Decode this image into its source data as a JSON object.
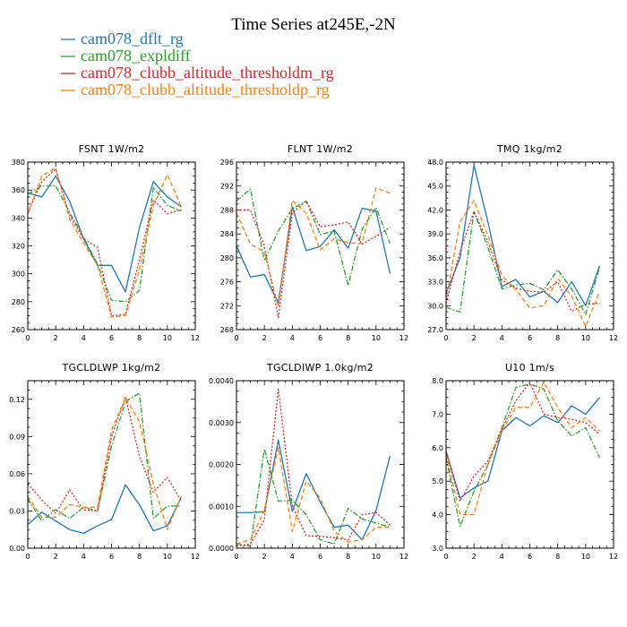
{
  "chart_data": {
    "type": "line",
    "title": "Time Series at245E,-2N",
    "legend_position": "top-left",
    "series_info": [
      {
        "name": "cam078_dflt_rg",
        "color": "#1f77b4",
        "dash": "solid"
      },
      {
        "name": "cam078_expldiff",
        "color": "#2ca02c",
        "dash": "dashdot"
      },
      {
        "name": "cam078_clubb_altitude_thresholdm_rg",
        "color": "#d62728",
        "dash": "dotted"
      },
      {
        "name": "cam078_clubb_altitude_thresholdp_rg",
        "color": "#ff7f0e",
        "dash": "dashed"
      }
    ],
    "x": [
      0,
      1,
      2,
      3,
      4,
      5,
      6,
      7,
      8,
      9,
      10,
      11
    ],
    "panels": [
      {
        "title": "FSNT  1W/m2",
        "xlim": [
          0,
          12
        ],
        "xticks": [
          "0",
          "2",
          "4",
          "6",
          "8",
          "10",
          "12"
        ],
        "ylim": [
          260,
          380
        ],
        "yticks": [
          "260",
          "280",
          "300",
          "320",
          "340",
          "360",
          "380"
        ],
        "series": [
          {
            "name": "cam078_dflt_rg",
            "values": [
              358,
              355,
              370,
              352,
              325,
              306,
              306,
              287,
              333,
              366,
              355,
              348
            ]
          },
          {
            "name": "cam078_expldiff",
            "values": [
              357,
              363,
              363,
              344,
              326,
              307,
              281,
              280,
              288,
              362,
              349,
              345
            ]
          },
          {
            "name": "cam078_clubb_altitude_thresholdm_rg",
            "values": [
              344,
              366,
              375,
              342,
              325,
              319,
              270,
              271,
              310,
              353,
              343,
              346
            ]
          },
          {
            "name": "cam078_clubb_altitude_thresholdp_rg",
            "values": [
              343,
              370,
              376,
              339,
              322,
              306,
              269,
              270,
              303,
              349,
              371,
              348
            ]
          }
        ]
      },
      {
        "title": "FLNT  1W/m2",
        "xlim": [
          0,
          12
        ],
        "xticks": [
          "0",
          "2",
          "4",
          "6",
          "8",
          "10",
          "12"
        ],
        "ylim": [
          268,
          296
        ],
        "yticks": [
          "268",
          "272",
          "276",
          "280",
          "284",
          "288",
          "292",
          "296"
        ],
        "series": [
          {
            "name": "cam078_dflt_rg",
            "values": [
              282,
              276.8,
              277.2,
              272.5,
              288.5,
              281.2,
              281.9,
              284.7,
              281.6,
              288.3,
              287.8,
              277.4
            ]
          },
          {
            "name": "cam078_expldiff",
            "values": [
              289.5,
              291.5,
              279.5,
              284.5,
              288.2,
              289.5,
              283.9,
              284.5,
              275.4,
              284.8,
              288.4,
              282.4
            ]
          },
          {
            "name": "cam078_clubb_altitude_thresholdm_rg",
            "values": [
              288,
              288,
              282,
              270,
              287.5,
              289.5,
              285.2,
              285.5,
              286,
              282.3,
              283.6,
              285.1
            ]
          },
          {
            "name": "cam078_clubb_altitude_thresholdp_rg",
            "values": [
              287.5,
              282.3,
              281,
              271.8,
              289.6,
              287.5,
              281.3,
              283.2,
              282.5,
              282.4,
              291.7,
              290.8
            ]
          }
        ]
      },
      {
        "title": "TMQ  1kg/m2",
        "xlim": [
          0,
          12
        ],
        "xticks": [
          "0",
          "2",
          "4",
          "6",
          "8",
          "10",
          "12"
        ],
        "ylim": [
          27,
          48
        ],
        "yticks": [
          "27.0",
          "30.0",
          "33.0",
          "36.0",
          "39.0",
          "42.0",
          "45.0",
          "48.0"
        ],
        "series": [
          {
            "name": "cam078_dflt_rg",
            "values": [
              31.5,
              36,
              47.6,
              40.5,
              32.4,
              33.3,
              31.1,
              31.8,
              30.4,
              33,
              30,
              35
            ]
          },
          {
            "name": "cam078_expldiff",
            "values": [
              29.8,
              29.2,
              41.8,
              37.3,
              32.1,
              32.6,
              32.8,
              32,
              34.5,
              32.1,
              28.9,
              34.8
            ]
          },
          {
            "name": "cam078_clubb_altitude_thresholdm_rg",
            "values": [
              30.3,
              36.8,
              41.8,
              38,
              33.2,
              32.2,
              31.8,
              31.7,
              33,
              29.3,
              30.2,
              30.3
            ]
          },
          {
            "name": "cam078_clubb_altitude_thresholdp_rg",
            "values": [
              30.8,
              40.5,
              43.2,
              38.8,
              33.8,
              32,
              29.7,
              30,
              33.4,
              31.2,
              27.4,
              31.8
            ]
          }
        ]
      },
      {
        "title": "TGCLDLWP  1kg/m2",
        "xlim": [
          0,
          12
        ],
        "xticks": [
          "0",
          "2",
          "4",
          "6",
          "8",
          "10",
          "12"
        ],
        "ylim": [
          0,
          0.135
        ],
        "yticks": [
          "0.00",
          "0.03",
          "0.06",
          "0.09",
          "0.12"
        ],
        "series": [
          {
            "name": "cam078_dflt_rg",
            "values": [
              0.019,
              0.029,
              0.022,
              0.015,
              0.012,
              0.018,
              0.023,
              0.051,
              0.035,
              0.014,
              0.018,
              0.041
            ]
          },
          {
            "name": "cam078_expldiff",
            "values": [
              0.04,
              0.022,
              0.031,
              0.024,
              0.033,
              0.03,
              0.082,
              0.118,
              0.125,
              0.024,
              0.034,
              0.034
            ]
          },
          {
            "name": "cam078_clubb_altitude_thresholdm_rg",
            "values": [
              0.052,
              0.039,
              0.028,
              0.047,
              0.031,
              0.03,
              0.09,
              0.122,
              0.074,
              0.045,
              0.057,
              0.038
            ]
          },
          {
            "name": "cam078_clubb_altitude_thresholdp_rg",
            "values": [
              0.042,
              0.025,
              0.025,
              0.035,
              0.033,
              0.033,
              0.095,
              0.121,
              0.102,
              0.052,
              0.015,
              0.042
            ]
          }
        ]
      },
      {
        "title": "TGCLDIWP  1.0kg/m2",
        "xlim": [
          0,
          12
        ],
        "xticks": [
          "0",
          "2",
          "4",
          "6",
          "8",
          "10",
          "12"
        ],
        "ylim": [
          0,
          0.004
        ],
        "yticks": [
          "0.0000",
          "0.0010",
          "0.0020",
          "0.0030",
          "0.0040"
        ],
        "series": [
          {
            "name": "cam078_dflt_rg",
            "values": [
              0.00085,
              0.00085,
              0.00087,
              0.00258,
              0.00088,
              0.00178,
              0.0011,
              0.0005,
              0.00055,
              0.0002,
              0.0009,
              0.0022
            ]
          },
          {
            "name": "cam078_expldiff",
            "values": [
              0.0001,
              5e-05,
              0.00237,
              0.00112,
              0.00115,
              0.0008,
              0.0002,
              0.0001,
              0.00095,
              0.0007,
              0.0006,
              0.0005
            ]
          },
          {
            "name": "cam078_clubb_altitude_thresholdm_rg",
            "values": [
              5e-05,
              0.0001,
              0.00068,
              0.0038,
              0.001,
              0.0003,
              0.00028,
              0.00025,
              0.0002,
              0.0008,
              0.00085,
              0.00055
            ]
          },
          {
            "name": "cam078_clubb_altitude_thresholdp_rg",
            "values": [
              0.0001,
              0.0002,
              0.0009,
              0.0024,
              0.0004,
              0.0016,
              0.0012,
              0.0004,
              0.00015,
              0.0002,
              0.0005,
              0.0005
            ]
          }
        ]
      },
      {
        "title": "U10  1m/s",
        "xlim": [
          0,
          12
        ],
        "xticks": [
          "0",
          "2",
          "4",
          "6",
          "8",
          "10",
          "12"
        ],
        "ylim": [
          3,
          8
        ],
        "yticks": [
          "3.0",
          "4.0",
          "5.0",
          "6.0",
          "7.0",
          "8.0"
        ],
        "series": [
          {
            "name": "cam078_dflt_rg",
            "values": [
              5.9,
              4.5,
              4.8,
              5.0,
              6.5,
              6.9,
              6.65,
              6.95,
              6.75,
              7.25,
              7.0,
              7.5
            ]
          },
          {
            "name": "cam078_expldiff",
            "values": [
              5.7,
              3.65,
              4.7,
              5.5,
              6.6,
              7.8,
              7.9,
              7.75,
              6.8,
              6.35,
              6.6,
              5.7
            ]
          },
          {
            "name": "cam078_clubb_altitude_thresholdm_rg",
            "values": [
              5.9,
              4.4,
              5.15,
              5.6,
              6.55,
              7.4,
              7.95,
              7.0,
              6.9,
              6.85,
              6.75,
              6.4
            ]
          },
          {
            "name": "cam078_clubb_altitude_thresholdp_rg",
            "values": [
              5.8,
              4.0,
              4.0,
              5.5,
              6.5,
              7.2,
              7.2,
              7.95,
              7.2,
              6.6,
              6.9,
              6.5
            ]
          }
        ]
      }
    ]
  }
}
